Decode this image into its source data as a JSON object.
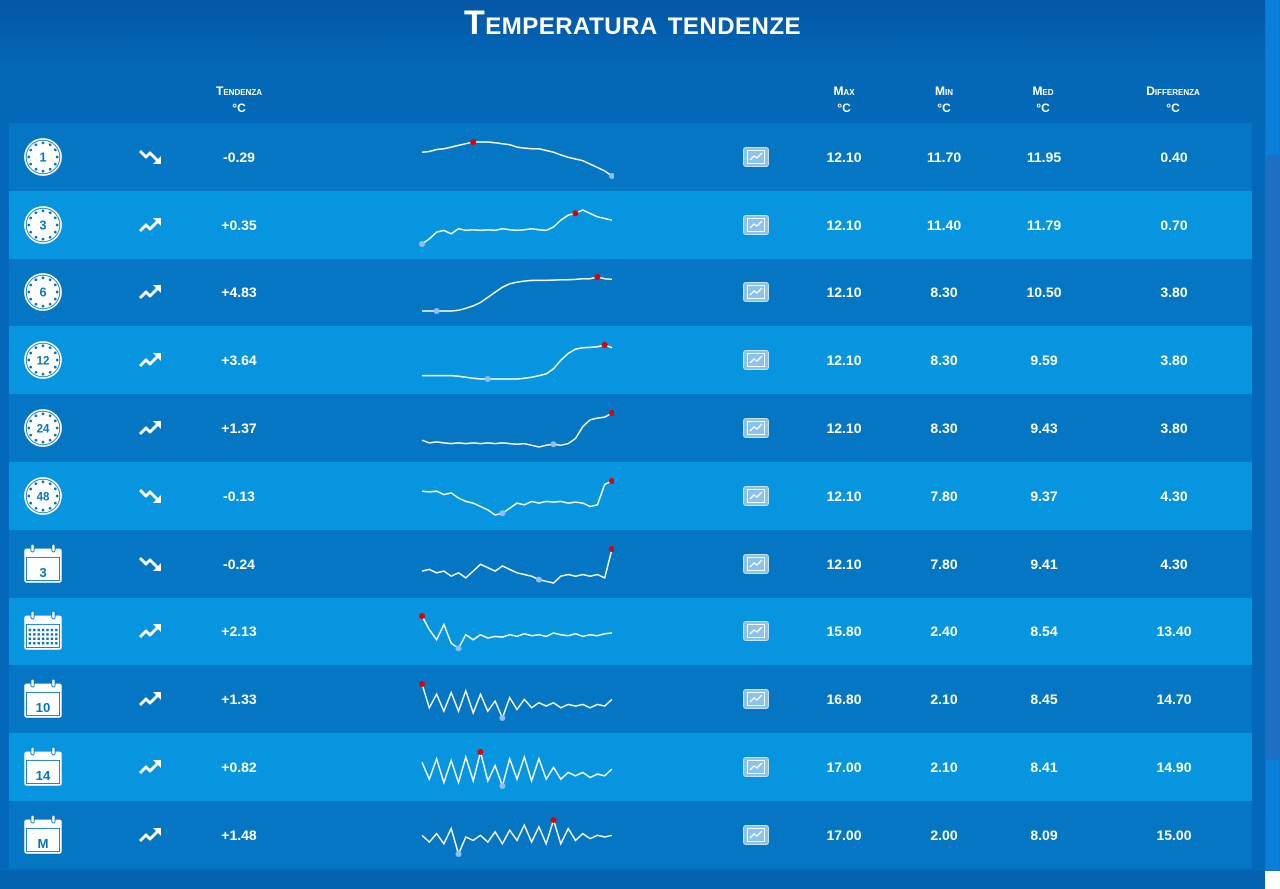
{
  "page": {
    "title": "Temperatura tendenze"
  },
  "headers": {
    "tendenza": [
      "Tendenza",
      "°C"
    ],
    "max": [
      "Max",
      "°C"
    ],
    "min": [
      "Min",
      "°C"
    ],
    "med": [
      "Med",
      "°C"
    ],
    "differenza": [
      "Differenza",
      "°C"
    ]
  },
  "colors": {
    "row_dark": "#0476c4",
    "row_light": "#0895e0",
    "max_marker": "#e00000",
    "min_marker": "#8fbff0"
  },
  "rows": [
    {
      "period": "1",
      "icon": "clock-icon",
      "trend": "down",
      "tendenza": "-0.29",
      "max": "12.10",
      "min": "11.70",
      "med": "11.95",
      "diff": "0.40",
      "spark": [
        0.7,
        0.72,
        0.78,
        0.8,
        0.85,
        0.9,
        0.95,
        1.0,
        1.0,
        1.0,
        0.98,
        0.95,
        0.92,
        0.85,
        0.82,
        0.8,
        0.8,
        0.75,
        0.7,
        0.62,
        0.55,
        0.5,
        0.45,
        0.35,
        0.25,
        0.15,
        0.0
      ],
      "max_i": 7,
      "min_i": 26
    },
    {
      "period": "3",
      "icon": "clock-icon",
      "trend": "up",
      "tendenza": "+0.35",
      "max": "12.10",
      "min": "11.40",
      "med": "11.79",
      "diff": "0.70",
      "spark": [
        0.0,
        0.15,
        0.35,
        0.4,
        0.3,
        0.45,
        0.4,
        0.42,
        0.4,
        0.42,
        0.4,
        0.45,
        0.42,
        0.4,
        0.42,
        0.45,
        0.42,
        0.4,
        0.5,
        0.7,
        0.85,
        0.9,
        1.0,
        0.9,
        0.8,
        0.75,
        0.7
      ],
      "max_i": 21,
      "min_i": 0
    },
    {
      "period": "6",
      "icon": "clock-icon",
      "trend": "up",
      "tendenza": "+4.83",
      "max": "12.10",
      "min": "8.30",
      "med": "10.50",
      "diff": "3.80",
      "spark": [
        0.0,
        0.0,
        0.0,
        0.0,
        0.0,
        0.02,
        0.08,
        0.15,
        0.25,
        0.4,
        0.55,
        0.7,
        0.8,
        0.85,
        0.88,
        0.9,
        0.9,
        0.9,
        0.91,
        0.92,
        0.92,
        0.93,
        0.95,
        0.95,
        1.0,
        0.95,
        0.93
      ],
      "max_i": 24,
      "min_i": 2
    },
    {
      "period": "12",
      "icon": "clock-icon",
      "trend": "up",
      "tendenza": "+3.64",
      "max": "12.10",
      "min": "8.30",
      "med": "9.59",
      "diff": "3.80",
      "spark": [
        0.1,
        0.1,
        0.1,
        0.1,
        0.1,
        0.08,
        0.05,
        0.02,
        0.0,
        0.0,
        0.0,
        0.0,
        0.0,
        0.0,
        0.02,
        0.05,
        0.1,
        0.15,
        0.3,
        0.55,
        0.75,
        0.88,
        0.92,
        0.93,
        0.95,
        1.0,
        0.92
      ],
      "max_i": 25,
      "min_i": 9
    },
    {
      "period": "24",
      "icon": "clock-icon",
      "trend": "up",
      "tendenza": "+1.37",
      "max": "12.10",
      "min": "8.30",
      "med": "9.43",
      "diff": "3.80",
      "spark": [
        0.2,
        0.12,
        0.15,
        0.12,
        0.1,
        0.12,
        0.1,
        0.12,
        0.1,
        0.12,
        0.1,
        0.12,
        0.1,
        0.08,
        0.1,
        0.05,
        0.0,
        0.05,
        0.08,
        0.05,
        0.1,
        0.25,
        0.6,
        0.8,
        0.85,
        0.88,
        1.0
      ],
      "max_i": 26,
      "min_i": 18
    },
    {
      "period": "48",
      "icon": "clock-icon",
      "trend": "down",
      "tendenza": "-0.13",
      "max": "12.10",
      "min": "7.80",
      "med": "9.37",
      "diff": "4.30",
      "spark": [
        0.7,
        0.68,
        0.7,
        0.6,
        0.65,
        0.5,
        0.4,
        0.35,
        0.25,
        0.15,
        0.0,
        0.05,
        0.2,
        0.35,
        0.3,
        0.4,
        0.35,
        0.4,
        0.38,
        0.4,
        0.35,
        0.38,
        0.35,
        0.25,
        0.3,
        0.9,
        1.0
      ],
      "max_i": 26,
      "min_i": 11
    },
    {
      "period": "3",
      "icon": "calendar-icon",
      "trend": "down",
      "tendenza": "-0.24",
      "max": "12.10",
      "min": "7.80",
      "med": "9.41",
      "diff": "4.30",
      "spark": [
        0.35,
        0.4,
        0.3,
        0.35,
        0.2,
        0.3,
        0.15,
        0.35,
        0.55,
        0.45,
        0.35,
        0.5,
        0.4,
        0.3,
        0.25,
        0.2,
        0.1,
        0.05,
        0.0,
        0.2,
        0.25,
        0.2,
        0.25,
        0.2,
        0.25,
        0.15,
        1.0
      ],
      "max_i": 26,
      "min_i": 16
    },
    {
      "period": "dots",
      "icon": "calendar-month-icon",
      "trend": "up",
      "tendenza": "+2.13",
      "max": "15.80",
      "min": "2.40",
      "med": "8.54",
      "diff": "13.40",
      "spark": [
        1.0,
        0.6,
        0.3,
        0.75,
        0.2,
        0.05,
        0.45,
        0.3,
        0.45,
        0.35,
        0.4,
        0.38,
        0.45,
        0.4,
        0.48,
        0.42,
        0.45,
        0.4,
        0.5,
        0.45,
        0.42,
        0.48,
        0.4,
        0.45,
        0.42,
        0.48,
        0.5
      ],
      "max_i": 0,
      "min_i": 5
    },
    {
      "period": "10",
      "icon": "calendar-icon",
      "trend": "up",
      "tendenza": "+1.33",
      "max": "16.80",
      "min": "2.10",
      "med": "8.45",
      "diff": "14.70",
      "spark": [
        1.0,
        0.3,
        0.7,
        0.2,
        0.75,
        0.2,
        0.8,
        0.15,
        0.7,
        0.2,
        0.5,
        0.0,
        0.6,
        0.25,
        0.55,
        0.3,
        0.45,
        0.35,
        0.45,
        0.3,
        0.4,
        0.35,
        0.4,
        0.3,
        0.4,
        0.35,
        0.55
      ],
      "max_i": 0,
      "min_i": 11
    },
    {
      "period": "14",
      "icon": "calendar-icon",
      "trend": "up",
      "tendenza": "+0.82",
      "max": "17.00",
      "min": "2.10",
      "med": "8.41",
      "diff": "14.90",
      "spark": [
        0.7,
        0.2,
        0.8,
        0.1,
        0.75,
        0.1,
        0.85,
        0.15,
        1.0,
        0.15,
        0.6,
        0.0,
        0.8,
        0.2,
        0.85,
        0.15,
        0.8,
        0.2,
        0.55,
        0.2,
        0.4,
        0.3,
        0.4,
        0.25,
        0.35,
        0.3,
        0.5
      ],
      "max_i": 8,
      "min_i": 11
    },
    {
      "period": "M",
      "icon": "calendar-icon",
      "trend": "up",
      "tendenza": "+1.48",
      "max": "17.00",
      "min": "2.00",
      "med": "8.09",
      "diff": "15.00",
      "spark": [
        0.55,
        0.35,
        0.6,
        0.3,
        0.75,
        0.0,
        0.5,
        0.4,
        0.55,
        0.35,
        0.65,
        0.3,
        0.7,
        0.4,
        0.85,
        0.35,
        0.8,
        0.3,
        1.0,
        0.3,
        0.75,
        0.4,
        0.6,
        0.45,
        0.55,
        0.5,
        0.55
      ],
      "max_i": 18,
      "min_i": 5
    }
  ]
}
